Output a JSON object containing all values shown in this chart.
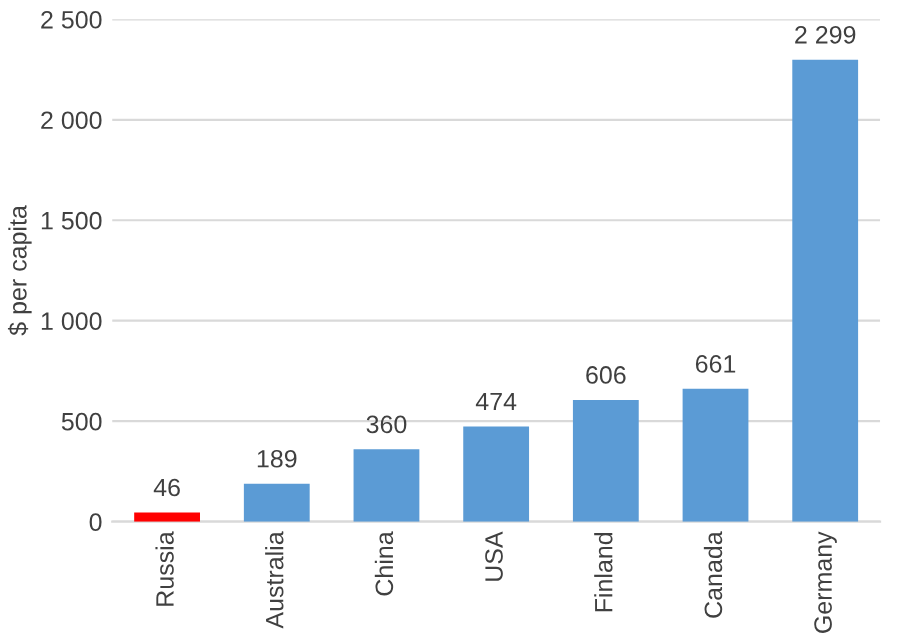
{
  "chart_data": {
    "type": "bar",
    "ylabel": "$ per capita",
    "categories": [
      "Russia",
      "Australia",
      "China",
      "USA",
      "Finland",
      "Canada",
      "Germany"
    ],
    "values": [
      46,
      189,
      360,
      474,
      606,
      661,
      2299
    ],
    "colors": [
      "#ff0000",
      "#5b9bd5",
      "#5b9bd5",
      "#5b9bd5",
      "#5b9bd5",
      "#5b9bd5",
      "#5b9bd5"
    ],
    "value_labels": [
      "46",
      "189",
      "360",
      "474",
      "606",
      "661",
      "2 299"
    ],
    "ylim": [
      0,
      2500
    ],
    "yticks": [
      0,
      500,
      {
        "value": 1000,
        "label": "1 000"
      },
      {
        "value": 1500,
        "label": "1 500"
      },
      {
        "value": 2000,
        "label": "2 000"
      },
      {
        "value": 2500,
        "label": "2 500"
      }
    ],
    "grid": "y"
  }
}
